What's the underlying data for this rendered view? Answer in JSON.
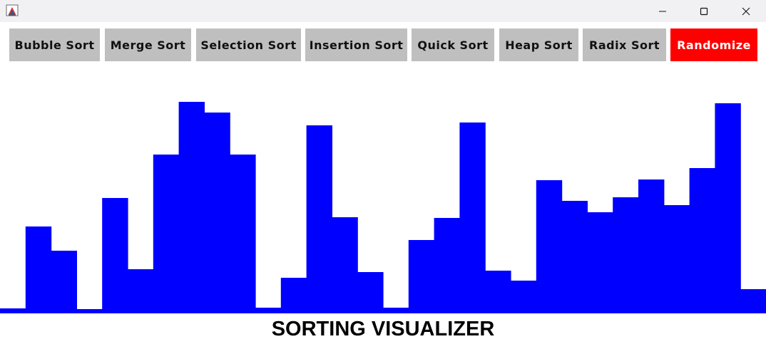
{
  "window": {
    "title": "",
    "controls": [
      {
        "name": "minimize",
        "icon": "minimize-icon"
      },
      {
        "name": "maximize",
        "icon": "maximize-icon"
      },
      {
        "name": "close",
        "icon": "close-icon"
      }
    ]
  },
  "toolbar": {
    "buttons": [
      {
        "label": "Bubble Sort"
      },
      {
        "label": "Merge Sort"
      },
      {
        "label": "Selection Sort"
      },
      {
        "label": "Insertion Sort"
      },
      {
        "label": "Quick Sort"
      },
      {
        "label": "Heap Sort"
      },
      {
        "label": "Radix Sort"
      },
      {
        "label": "Randomize"
      }
    ]
  },
  "colors": {
    "bar": "#0000ff",
    "button": "#bfbfbf",
    "randomize_button": "#ff0000",
    "titlebar": "#f1f1f4"
  },
  "chart_data": {
    "type": "bar",
    "values": [
      7,
      122,
      88,
      6,
      162,
      62,
      223,
      297,
      282,
      223,
      8,
      50,
      264,
      135,
      58,
      8,
      103,
      134,
      268,
      60,
      46,
      187,
      158,
      142,
      163,
      188,
      152,
      204,
      295,
      34
    ],
    "ylim": [
      0,
      340
    ]
  },
  "footer": {
    "title": "SORTING VISUALIZER"
  }
}
